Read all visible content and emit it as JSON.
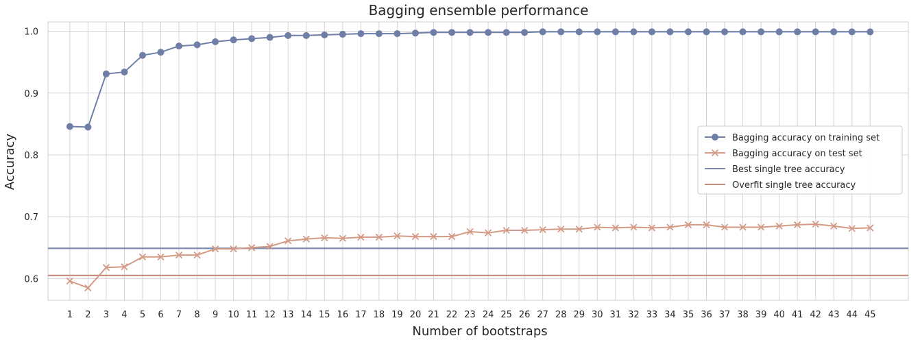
{
  "chart_data": {
    "type": "line",
    "title": "Bagging ensemble performance",
    "xlabel": "Number of bootstraps",
    "ylabel": "Accuracy",
    "x": [
      1,
      2,
      3,
      4,
      5,
      6,
      7,
      8,
      9,
      10,
      11,
      12,
      13,
      14,
      15,
      16,
      17,
      18,
      19,
      20,
      21,
      22,
      23,
      24,
      25,
      26,
      27,
      28,
      29,
      30,
      31,
      32,
      33,
      34,
      35,
      36,
      37,
      38,
      39,
      40,
      41,
      42,
      43,
      44,
      45
    ],
    "xlim": [
      -0.2,
      47.1
    ],
    "ylim": [
      0.565,
      1.015
    ],
    "yticks": [
      0.6,
      0.7,
      0.8,
      0.9,
      1.0
    ],
    "ytick_labels": [
      "0.6",
      "0.7",
      "0.8",
      "0.9",
      "1.0"
    ],
    "grid": true,
    "legend_position": "center-right",
    "series": [
      {
        "name": "Bagging accuracy on training set",
        "marker": "circle",
        "color": "#6f7ea6",
        "values": [
          0.846,
          0.845,
          0.931,
          0.934,
          0.961,
          0.966,
          0.976,
          0.978,
          0.983,
          0.986,
          0.988,
          0.99,
          0.993,
          0.993,
          0.994,
          0.995,
          0.996,
          0.996,
          0.996,
          0.997,
          0.998,
          0.998,
          0.998,
          0.998,
          0.998,
          0.998,
          0.999,
          0.999,
          0.999,
          0.999,
          0.999,
          0.999,
          0.999,
          0.999,
          0.999,
          0.999,
          0.999,
          0.999,
          0.999,
          0.999,
          0.999,
          0.999,
          0.999,
          0.999,
          0.999
        ]
      },
      {
        "name": "Bagging accuracy on test set",
        "marker": "x",
        "color": "#d49a86",
        "values": [
          0.596,
          0.585,
          0.618,
          0.619,
          0.635,
          0.635,
          0.638,
          0.638,
          0.648,
          0.648,
          0.65,
          0.652,
          0.661,
          0.664,
          0.666,
          0.665,
          0.667,
          0.667,
          0.669,
          0.668,
          0.668,
          0.668,
          0.676,
          0.674,
          0.678,
          0.678,
          0.679,
          0.68,
          0.68,
          0.683,
          0.682,
          0.683,
          0.682,
          0.683,
          0.687,
          0.687,
          0.683,
          0.683,
          0.683,
          0.685,
          0.687,
          0.688,
          0.685,
          0.681,
          0.682
        ]
      }
    ],
    "hlines": [
      {
        "name": "Best single tree accuracy",
        "y": 0.649,
        "color": "#7d8bb0"
      },
      {
        "name": "Overfit single tree accuracy",
        "y": 0.605,
        "color": "#c99082"
      }
    ]
  }
}
